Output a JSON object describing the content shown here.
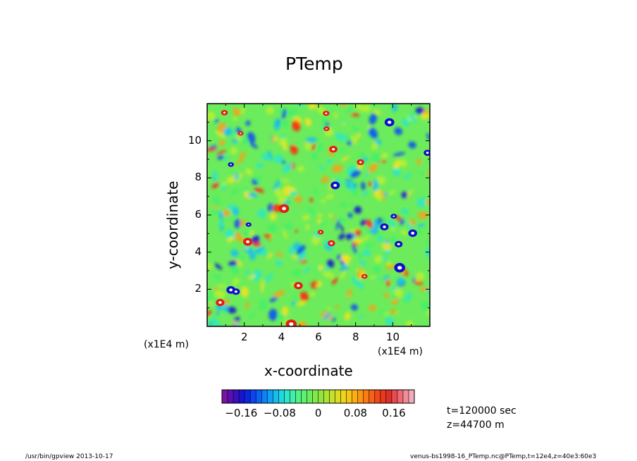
{
  "chart_data": {
    "type": "heatmap",
    "title": "PTemp",
    "xlabel": "x-coordinate",
    "ylabel": "y-coordinate",
    "x_unit": "(x1E4 m)",
    "y_unit": "(x1E4 m)",
    "xlim": [
      0,
      12
    ],
    "ylim": [
      0,
      12
    ],
    "x_ticks": [
      "2",
      "4",
      "6",
      "8",
      "10"
    ],
    "y_ticks": [
      "2",
      "4",
      "6",
      "8",
      "10"
    ],
    "colorbar": {
      "range": [
        -0.2,
        0.2
      ],
      "tick_labels": [
        "−0.16",
        "−0.08",
        "0",
        "0.08",
        "0.16"
      ],
      "colors": [
        "#7a12a3",
        "#5a10b0",
        "#3a10c0",
        "#1a14cf",
        "#0a28e0",
        "#0b44f0",
        "#0d62f6",
        "#0f80f8",
        "#12a0f6",
        "#18bdf0",
        "#20d6e2",
        "#2ee6c8",
        "#40efa8",
        "#52f288",
        "#5ef070",
        "#6cec5c",
        "#7ee84c",
        "#94e43e",
        "#ace232",
        "#c4e02a",
        "#dcdc22",
        "#eed41c",
        "#f8c418",
        "#fcae14",
        "#fc9612",
        "#fa7c12",
        "#f66214",
        "#f04a18",
        "#e8381e",
        "#e02e2a",
        "#e84a50",
        "#ee6a74",
        "#f28c98",
        "#f4aab8"
      ]
    },
    "series": []
  },
  "annotations": {
    "time": "t=120000 sec",
    "height": "z=44700  m"
  },
  "footer": {
    "left": "/usr/bin/gpview   2013-10-17",
    "right": "venus-bs1998-16_PTemp.nc@PTemp,t=12e4,z=40e3:60e3"
  }
}
